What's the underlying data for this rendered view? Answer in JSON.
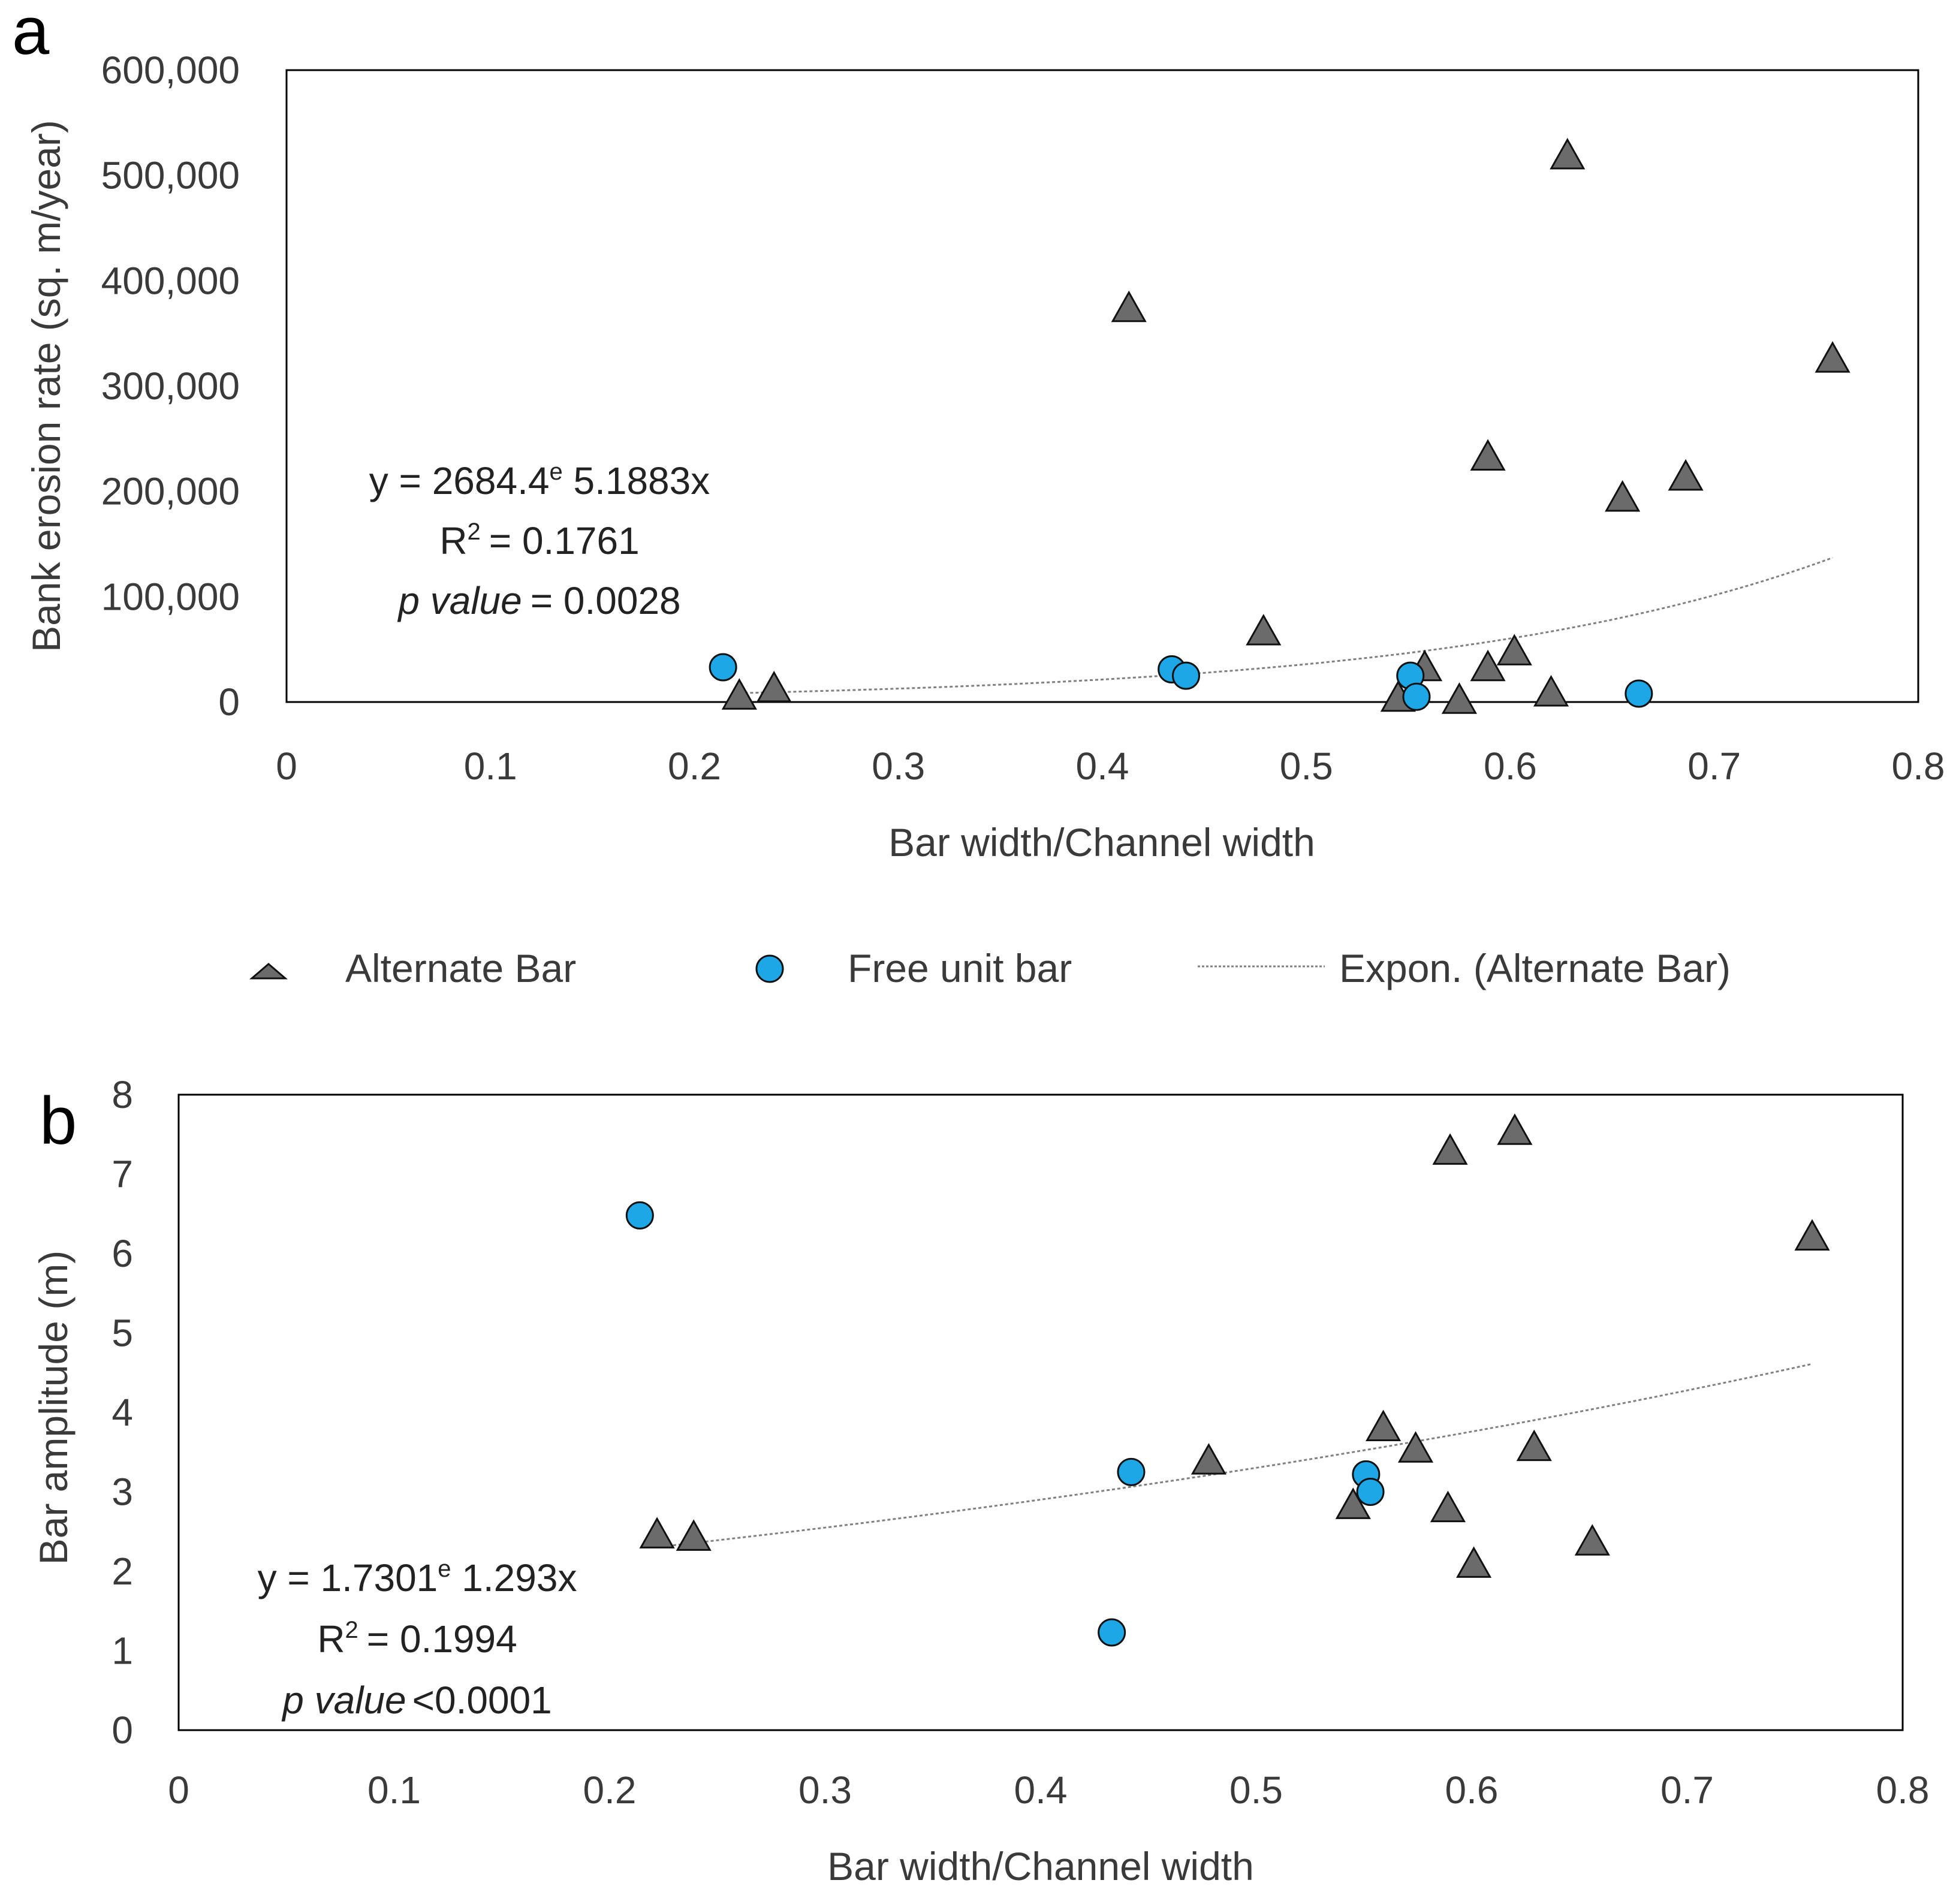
{
  "legend": {
    "alternate": "Alternate Bar",
    "free": "Free unit bar",
    "trend": "Expon. (Alternate Bar)"
  },
  "colors": {
    "alternate_fill": "#6b6b6b",
    "free_fill": "#1ea7e6",
    "marker_stroke": "#111111",
    "trend": "#808080"
  },
  "chart_data": [
    {
      "panel": "a",
      "type": "scatter",
      "xlabel": "Bar width/Channel width",
      "ylabel": "Bank erosion rate (sq. m/year)",
      "xlim": [
        0,
        0.8
      ],
      "ylim": [
        0,
        600000
      ],
      "xticks": [
        "0",
        "0.1",
        "0.2",
        "0.3",
        "0.4",
        "0.5",
        "0.6",
        "0.7",
        "0.8"
      ],
      "yticks": [
        "0",
        "100,000",
        "200,000",
        "300,000",
        "400,000",
        "500,000",
        "600,000"
      ],
      "equation": {
        "prefix": "y = 2684.4",
        "sup": "e",
        "suffix": " 5.1883x",
        "r2_label": "R",
        "r2_value": "= 0.1761",
        "p_label": "p value",
        "p_value": "= 0.0028"
      },
      "trend": {
        "a": 2684.4,
        "b": 5.1883,
        "x_from": 0.222,
        "x_to": 0.758
      },
      "series": [
        {
          "name": "Alternate Bar",
          "marker": "triangle",
          "x": [
            0.222,
            0.239,
            0.413,
            0.479,
            0.545,
            0.558,
            0.575,
            0.589,
            0.589,
            0.602,
            0.62,
            0.628,
            0.655,
            0.686,
            0.758
          ],
          "y": [
            5000,
            12000,
            373000,
            66000,
            3000,
            32000,
            1000,
            32000,
            232000,
            47000,
            8000,
            518000,
            193000,
            213000,
            325000
          ]
        },
        {
          "name": "Free unit bar",
          "marker": "circle",
          "x": [
            0.214,
            0.434,
            0.441,
            0.551,
            0.554,
            0.663
          ],
          "y": [
            33000,
            31000,
            25000,
            25000,
            5000,
            8000
          ]
        }
      ]
    },
    {
      "panel": "b",
      "type": "scatter",
      "xlabel": "Bar width/Channel width",
      "ylabel": "Bar amplitude (m)",
      "xlim": [
        0,
        0.8
      ],
      "ylim": [
        0,
        8
      ],
      "xticks": [
        "0",
        "0.1",
        "0.2",
        "0.3",
        "0.4",
        "0.5",
        "0.6",
        "0.7",
        "0.8"
      ],
      "yticks": [
        "0",
        "1",
        "2",
        "3",
        "4",
        "5",
        "6",
        "7",
        "8"
      ],
      "equation": {
        "prefix": "y = 1.7301",
        "sup": "e",
        "suffix": " 1.293x",
        "r2_label": "R",
        "r2_value": "= 0.1994",
        "p_label": "p value",
        "p_value": "<0.0001"
      },
      "trend": {
        "a": 1.7301,
        "b": 1.293,
        "x_from": 0.222,
        "x_to": 0.758
      },
      "series": [
        {
          "name": "Alternate Bar",
          "marker": "triangle",
          "x": [
            0.222,
            0.239,
            0.478,
            0.545,
            0.559,
            0.574,
            0.589,
            0.59,
            0.601,
            0.62,
            0.629,
            0.656,
            0.758
          ],
          "y": [
            2.45,
            2.42,
            3.38,
            2.82,
            3.8,
            3.53,
            2.78,
            7.28,
            2.08,
            7.53,
            3.55,
            2.36,
            6.2
          ]
        },
        {
          "name": "Free unit bar",
          "marker": "circle",
          "x": [
            0.214,
            0.433,
            0.442,
            0.551,
            0.553
          ],
          "y": [
            6.48,
            1.23,
            3.25,
            3.22,
            3.0
          ]
        }
      ]
    }
  ]
}
